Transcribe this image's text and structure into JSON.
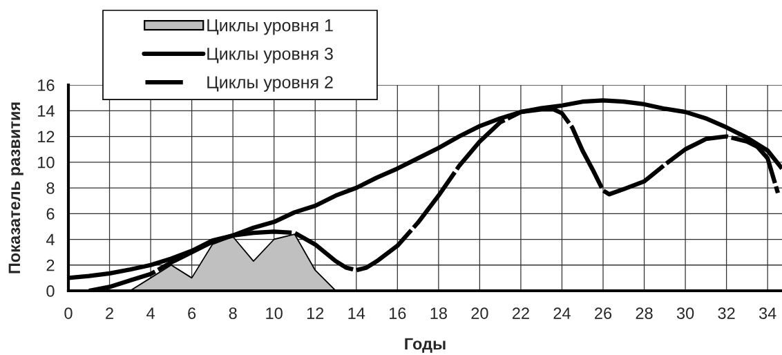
{
  "chart_data": {
    "type": "line",
    "xlabel": "Годы",
    "ylabel": "Показатель развития",
    "series": [
      {
        "name": "Циклы уровня 1",
        "type": "area",
        "color": "#c0c0c0",
        "x": [
          3,
          4,
          5,
          6,
          7,
          8,
          9,
          10,
          11,
          12,
          13
        ],
        "values": [
          0,
          1,
          2,
          1,
          3.6,
          4.2,
          2.3,
          4,
          4.4,
          1.6,
          0
        ]
      },
      {
        "name": "Циклы уровня 3",
        "color": "#000000",
        "line_style": "solid",
        "x": [
          0,
          1,
          2,
          3,
          4,
          5,
          6,
          7,
          8,
          9,
          10,
          11,
          12,
          13,
          14,
          15,
          16,
          17,
          18,
          19,
          20,
          21,
          22,
          23,
          24,
          25,
          26,
          27,
          28,
          29,
          30,
          31,
          32,
          33,
          34,
          34.7
        ],
        "values": [
          1.0,
          1.15,
          1.35,
          1.65,
          2.0,
          2.5,
          3.1,
          3.9,
          4.3,
          4.9,
          5.35,
          6.1,
          6.6,
          7.4,
          8.0,
          8.8,
          9.5,
          10.3,
          11.1,
          12.0,
          12.8,
          13.4,
          13.9,
          14.2,
          14.4,
          14.7,
          14.8,
          14.7,
          14.5,
          14.15,
          13.9,
          13.4,
          12.7,
          11.9,
          10.9,
          9.5
        ]
      },
      {
        "name": "Циклы уровня 2",
        "color": "#000000",
        "line_style": "dashed",
        "x": [
          1,
          2,
          3,
          4,
          5,
          6,
          7,
          8,
          9,
          10,
          11,
          12,
          13,
          13.5,
          14,
          14.5,
          15,
          16,
          17,
          18,
          19,
          20,
          21,
          22,
          23,
          23.6,
          24,
          24.5,
          25,
          25.5,
          26,
          26.3,
          27,
          28,
          29,
          30,
          31,
          32,
          33,
          33.5,
          34,
          34.5
        ],
        "values": [
          0,
          0.3,
          0.8,
          1.3,
          2.2,
          3.0,
          3.8,
          4.3,
          4.5,
          4.6,
          4.5,
          3.6,
          2.3,
          1.8,
          1.6,
          1.8,
          2.3,
          3.5,
          5.3,
          7.4,
          9.7,
          11.6,
          13.1,
          13.9,
          14.1,
          14.1,
          13.8,
          12.7,
          10.9,
          9.4,
          7.8,
          7.5,
          7.9,
          8.5,
          9.8,
          11.0,
          11.8,
          12.0,
          11.6,
          11.2,
          10.3,
          7.6
        ]
      }
    ],
    "xlim": [
      0,
      34.7
    ],
    "xticks": [
      0,
      2,
      4,
      6,
      8,
      10,
      12,
      14,
      16,
      18,
      20,
      22,
      24,
      26,
      28,
      30,
      32,
      34
    ],
    "ylim": [
      0,
      16
    ],
    "yticks": [
      0,
      2,
      4,
      6,
      8,
      10,
      12,
      14,
      16
    ],
    "grid": true,
    "legend": "top left"
  }
}
